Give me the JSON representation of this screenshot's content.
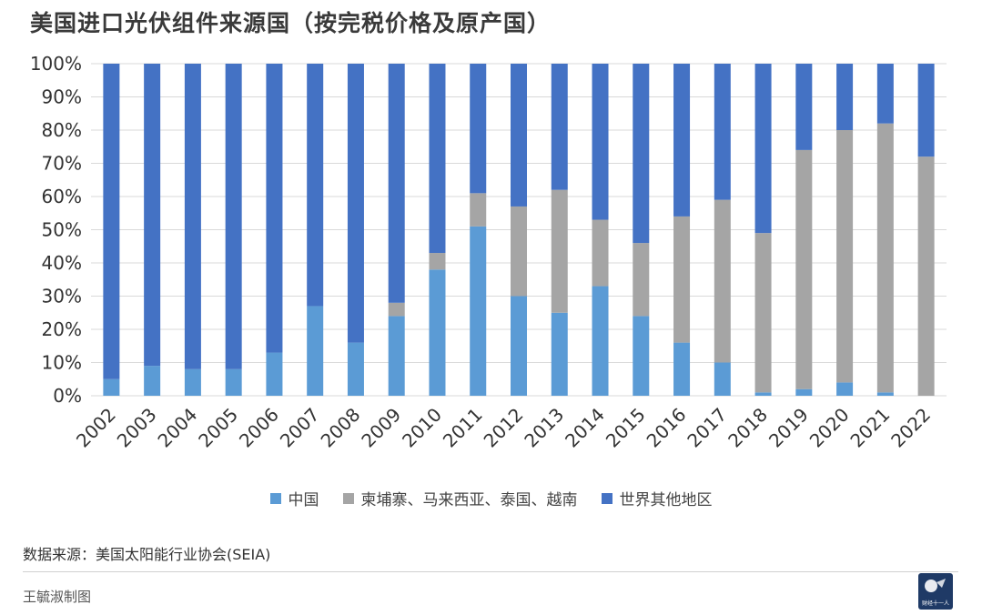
{
  "header": {
    "title": "美国进口光伏组件来源国（按完税价格及原产国）"
  },
  "footer": {
    "source": "数据来源：美国太阳能行业协会(SEIA)",
    "author": "王毓淑制图",
    "logo_text": "财经十一人"
  },
  "colors": {
    "china": "#5b9bd5",
    "sea4": "#a5a5a5",
    "rest": "#4472c4"
  },
  "chart_data": {
    "type": "bar",
    "stacked": true,
    "categories": [
      "2002",
      "2003",
      "2004",
      "2005",
      "2006",
      "2007",
      "2008",
      "2009",
      "2010",
      "2011",
      "2012",
      "2013",
      "2014",
      "2015",
      "2016",
      "2017",
      "2018",
      "2019",
      "2020",
      "2021",
      "2022"
    ],
    "series": [
      {
        "name": "中国",
        "color": "#5b9bd5",
        "values": [
          5,
          9,
          8,
          8,
          13,
          27,
          16,
          24,
          38,
          51,
          30,
          25,
          33,
          24,
          16,
          10,
          1,
          2,
          4,
          1,
          0
        ]
      },
      {
        "name": "柬埔寨、马来西亚、泰国、越南",
        "color": "#a5a5a5",
        "values": [
          0,
          0,
          0,
          0,
          0,
          0,
          0,
          4,
          5,
          10,
          27,
          37,
          20,
          22,
          38,
          49,
          48,
          72,
          76,
          81,
          72
        ]
      },
      {
        "name": "世界其他地区",
        "color": "#4472c4",
        "values": [
          95,
          91,
          92,
          92,
          87,
          73,
          84,
          72,
          57,
          39,
          43,
          38,
          47,
          54,
          46,
          41,
          51,
          26,
          20,
          18,
          28
        ]
      }
    ],
    "ylim": [
      0,
      100
    ],
    "yticks": [
      "0%",
      "10%",
      "20%",
      "30%",
      "40%",
      "50%",
      "60%",
      "70%",
      "80%",
      "90%",
      "100%"
    ],
    "grid": true,
    "legend": "bottom"
  }
}
